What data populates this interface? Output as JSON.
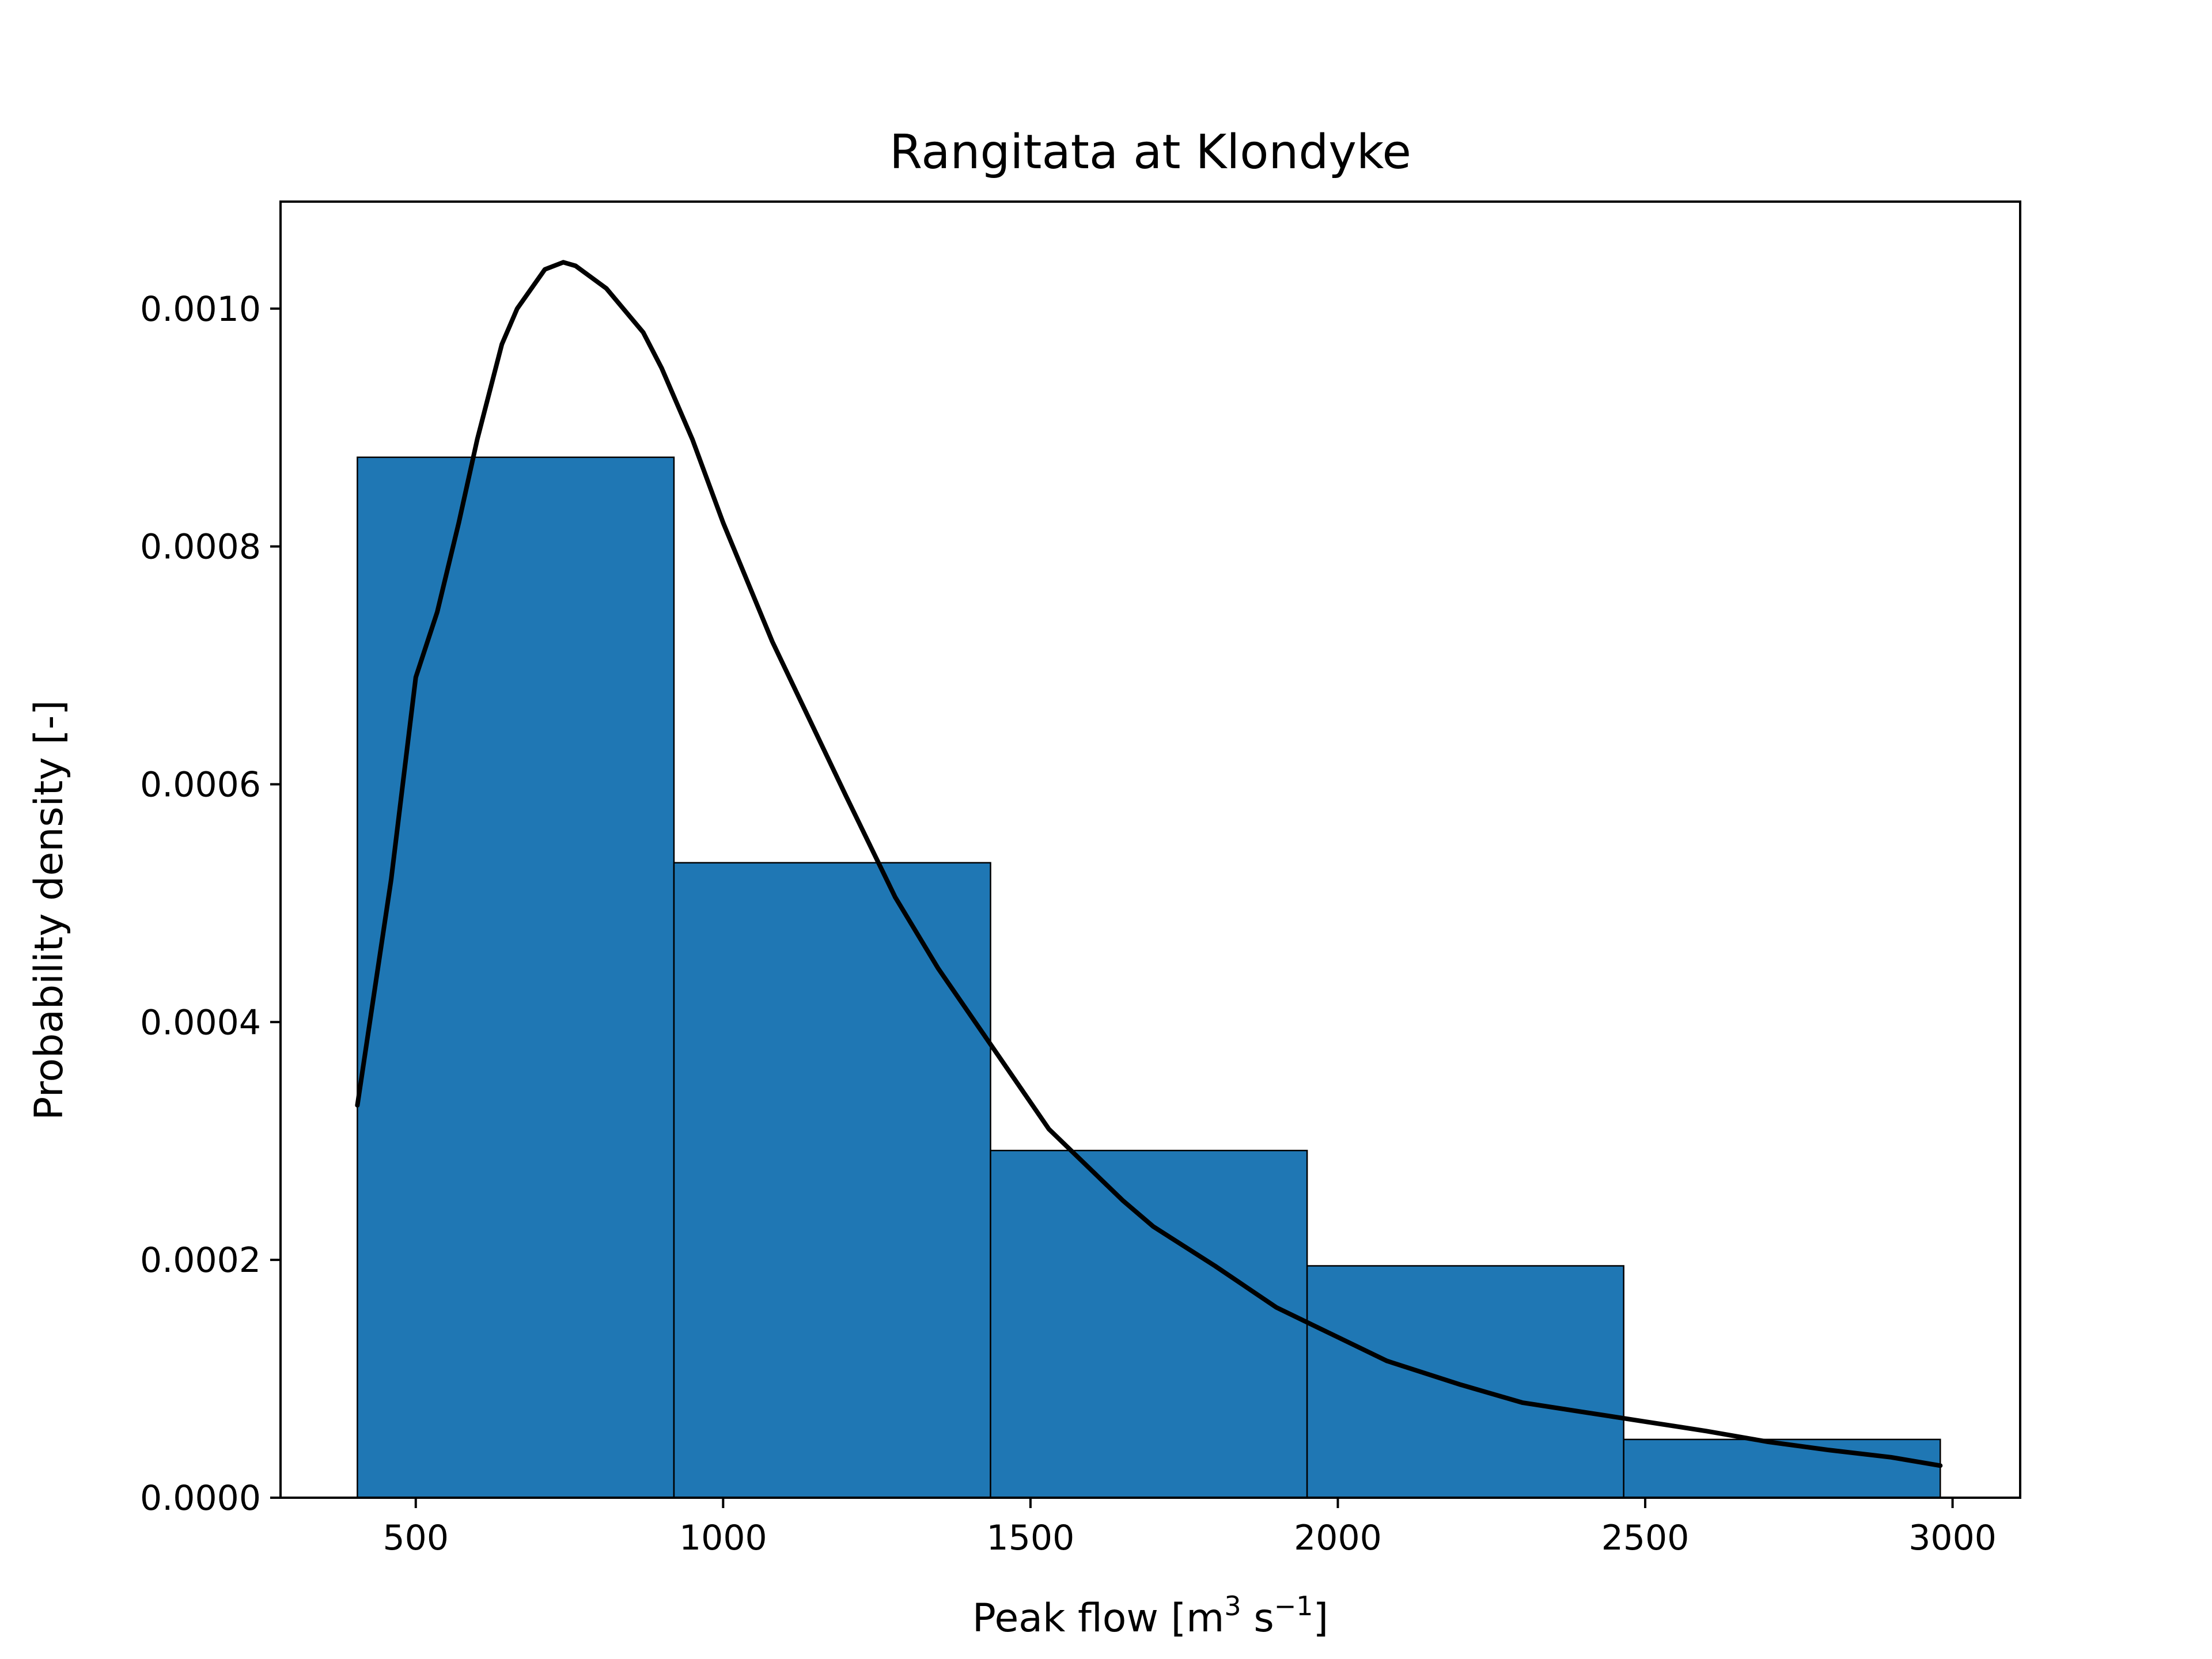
{
  "chart_data": {
    "type": "bar",
    "title": "Rangitata at Klondyke",
    "xlabel_parts": [
      "Peak flow [m",
      "3",
      " s",
      "−1",
      "]"
    ],
    "ylabel": "Probability density [-]",
    "xlim": [
      280,
      3110
    ],
    "ylim": [
      0,
      0.00109
    ],
    "x_ticks": [
      500,
      1000,
      1500,
      2000,
      2500,
      3000
    ],
    "x_tick_labels": [
      "500",
      "1000",
      "1500",
      "2000",
      "2500",
      "3000"
    ],
    "y_ticks": [
      0,
      0.0002,
      0.0004,
      0.0006,
      0.0008,
      0.001
    ],
    "y_tick_labels": [
      "0.0000",
      "0.0002",
      "0.0004",
      "0.0006",
      "0.0008",
      "0.0010"
    ],
    "grid": false,
    "bar_color": "#1f77b4",
    "curve_color": "#000000",
    "bins": [
      {
        "x0": 405,
        "x1": 920,
        "density": 0.000875
      },
      {
        "x0": 920,
        "x1": 1435,
        "density": 0.000534
      },
      {
        "x0": 1435,
        "x1": 1950,
        "density": 0.000292
      },
      {
        "x0": 1950,
        "x1": 2465,
        "density": 0.000195
      },
      {
        "x0": 2465,
        "x1": 2980,
        "density": 4.9e-05
      }
    ],
    "density_curve": [
      [
        405,
        0.00033
      ],
      [
        460,
        0.00052
      ],
      [
        500,
        0.00069
      ],
      [
        535,
        0.000745
      ],
      [
        570,
        0.00082
      ],
      [
        600,
        0.00089
      ],
      [
        640,
        0.00097
      ],
      [
        665,
        0.001
      ],
      [
        710,
        0.001033
      ],
      [
        740,
        0.001039
      ],
      [
        760,
        0.001036
      ],
      [
        810,
        0.001017
      ],
      [
        870,
        0.00098
      ],
      [
        900,
        0.00095
      ],
      [
        950,
        0.00089
      ],
      [
        1000,
        0.00082
      ],
      [
        1080,
        0.00072
      ],
      [
        1200,
        0.00059
      ],
      [
        1280,
        0.000505
      ],
      [
        1350,
        0.000445
      ],
      [
        1450,
        0.00037
      ],
      [
        1530,
        0.00031
      ],
      [
        1650,
        0.00025
      ],
      [
        1700,
        0.000228
      ],
      [
        1800,
        0.000195
      ],
      [
        1900,
        0.00016
      ],
      [
        2000,
        0.000135
      ],
      [
        2080,
        0.000115
      ],
      [
        2200,
        9.5e-05
      ],
      [
        2300,
        8e-05
      ],
      [
        2400,
        7.2e-05
      ],
      [
        2500,
        6.4e-05
      ],
      [
        2600,
        5.6e-05
      ],
      [
        2700,
        4.7e-05
      ],
      [
        2800,
        4e-05
      ],
      [
        2900,
        3.4e-05
      ],
      [
        2980,
        2.7e-05
      ]
    ]
  }
}
